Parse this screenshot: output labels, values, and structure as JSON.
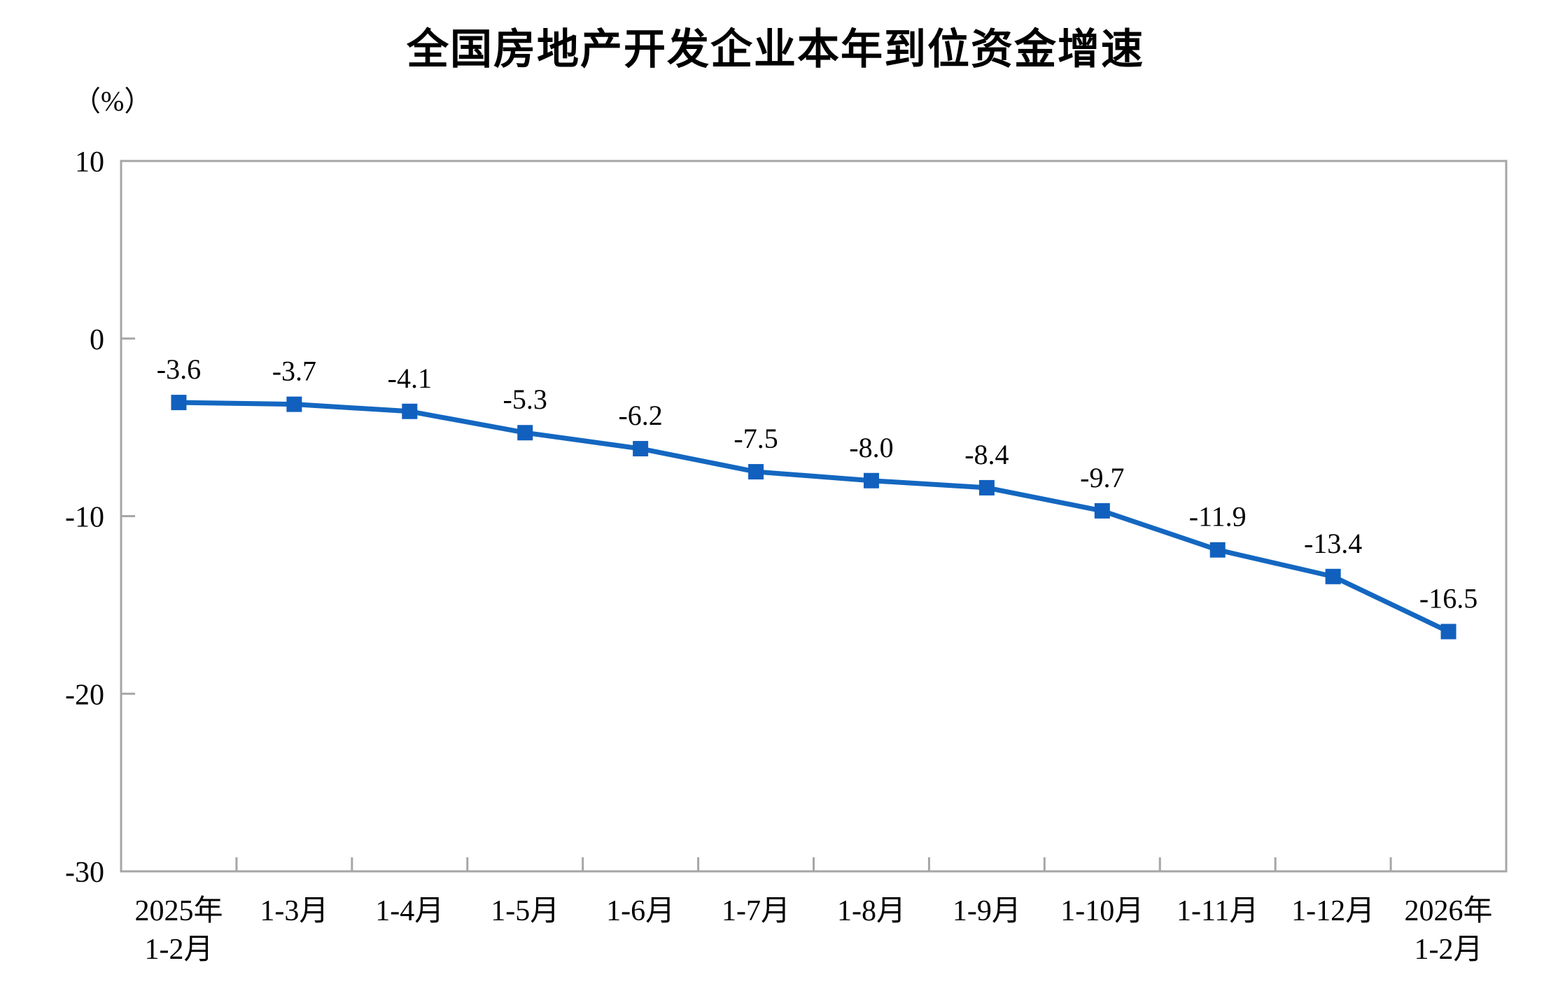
{
  "page": {
    "background": "#ffffff"
  },
  "chart_data": {
    "type": "line",
    "title": "全国房地产开发企业本年到位资金增速",
    "unit_label": "（%）",
    "categories": [
      "2025年\n1-2月",
      "1-3月",
      "1-4月",
      "1-5月",
      "1-6月",
      "1-7月",
      "1-8月",
      "1-9月",
      "1-10月",
      "1-11月",
      "1-12月",
      "2026年\n1-2月"
    ],
    "series": [
      {
        "name": "本年到位资金增速",
        "values": [
          -3.6,
          -3.7,
          -4.1,
          -5.3,
          -6.2,
          -7.5,
          -8.0,
          -8.4,
          -9.7,
          -11.9,
          -13.4,
          -16.5
        ],
        "data_labels": [
          "-3.6",
          "-3.7",
          "-4.1",
          "-5.3",
          "-6.2",
          "-7.5",
          "-8.0",
          "-8.4",
          "-9.7",
          "-11.9",
          "-13.4",
          "-16.5"
        ]
      }
    ],
    "xlabel": "",
    "ylabel": "（%）",
    "ylim": [
      -30,
      10
    ],
    "y_ticks": [
      10,
      0,
      -10,
      -20,
      -30
    ],
    "grid": false,
    "legend_position": "none",
    "marker": "square",
    "colors": {
      "line": "#1467C0",
      "marker": "#1160BE",
      "axis": "#A6A6A6",
      "text": "#000000",
      "background": "#ffffff"
    }
  }
}
